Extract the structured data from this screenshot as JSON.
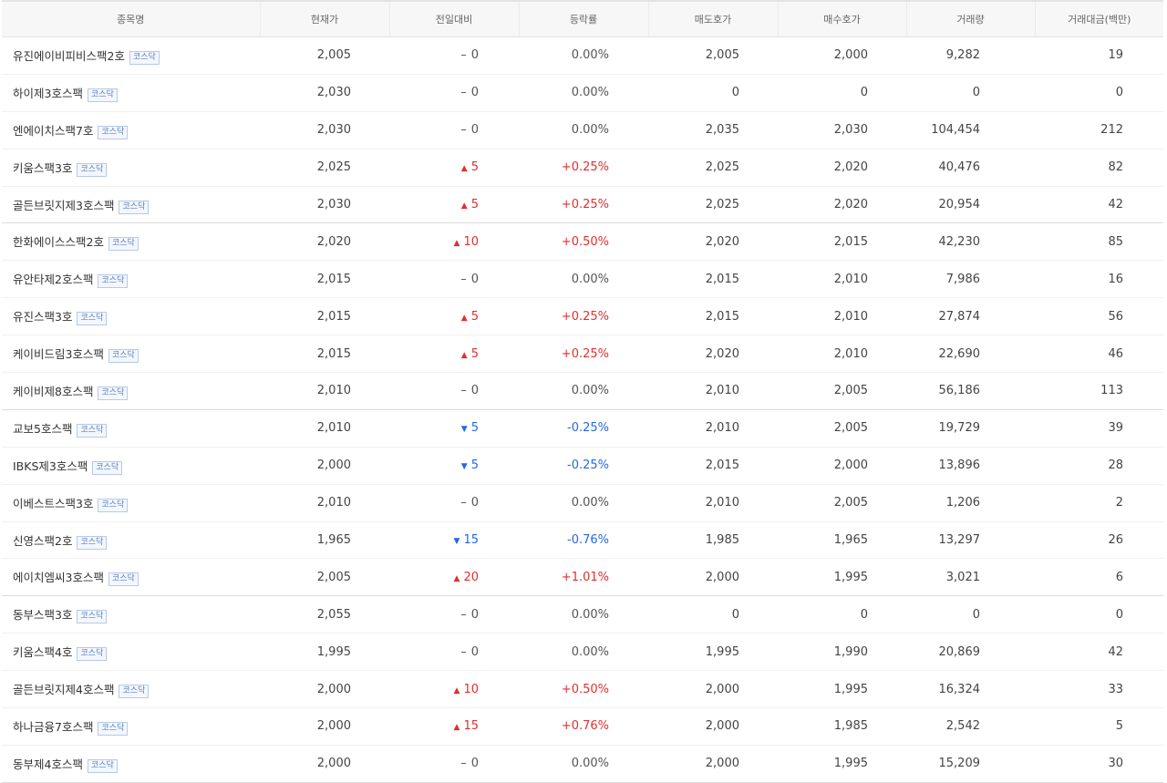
{
  "headers": [
    "종목명",
    "현재가",
    "전일대비",
    "등락률",
    "매도호가",
    "매수호가",
    "거래량",
    "거래대금(백만)"
  ],
  "badge_label": "코스닥",
  "colors": {
    "up": "#e0302e",
    "down": "#2468e8",
    "flat": "#555555",
    "badge_border": "#b7c9e6"
  },
  "rows": [
    {
      "name": "유진에이비피비스팩2호",
      "price": "2,005",
      "dir": "flat",
      "change": "0",
      "rate": "0.00%",
      "ask": "2,005",
      "bid": "2,000",
      "volume": "9,282",
      "amount": "19"
    },
    {
      "name": "하이제3호스팩",
      "price": "2,030",
      "dir": "flat",
      "change": "0",
      "rate": "0.00%",
      "ask": "0",
      "bid": "0",
      "volume": "0",
      "amount": "0"
    },
    {
      "name": "엔에이치스팩7호",
      "price": "2,030",
      "dir": "flat",
      "change": "0",
      "rate": "0.00%",
      "ask": "2,035",
      "bid": "2,030",
      "volume": "104,454",
      "amount": "212"
    },
    {
      "name": "키움스팩3호",
      "price": "2,025",
      "dir": "up",
      "change": "5",
      "rate": "+0.25%",
      "ask": "2,025",
      "bid": "2,020",
      "volume": "40,476",
      "amount": "82"
    },
    {
      "name": "골든브릿지제3호스팩",
      "price": "2,030",
      "dir": "up",
      "change": "5",
      "rate": "+0.25%",
      "ask": "2,025",
      "bid": "2,020",
      "volume": "20,954",
      "amount": "42"
    },
    {
      "name": "한화에이스스팩2호",
      "price": "2,020",
      "dir": "up",
      "change": "10",
      "rate": "+0.50%",
      "ask": "2,020",
      "bid": "2,015",
      "volume": "42,230",
      "amount": "85"
    },
    {
      "name": "유안타제2호스팩",
      "price": "2,015",
      "dir": "flat",
      "change": "0",
      "rate": "0.00%",
      "ask": "2,015",
      "bid": "2,010",
      "volume": "7,986",
      "amount": "16"
    },
    {
      "name": "유진스팩3호",
      "price": "2,015",
      "dir": "up",
      "change": "5",
      "rate": "+0.25%",
      "ask": "2,015",
      "bid": "2,010",
      "volume": "27,874",
      "amount": "56"
    },
    {
      "name": "케이비드림3호스팩",
      "price": "2,015",
      "dir": "up",
      "change": "5",
      "rate": "+0.25%",
      "ask": "2,020",
      "bid": "2,010",
      "volume": "22,690",
      "amount": "46"
    },
    {
      "name": "케이비제8호스팩",
      "price": "2,010",
      "dir": "flat",
      "change": "0",
      "rate": "0.00%",
      "ask": "2,010",
      "bid": "2,005",
      "volume": "56,186",
      "amount": "113"
    },
    {
      "name": "교보5호스팩",
      "price": "2,010",
      "dir": "down",
      "change": "5",
      "rate": "-0.25%",
      "ask": "2,010",
      "bid": "2,005",
      "volume": "19,729",
      "amount": "39"
    },
    {
      "name": "IBKS제3호스팩",
      "price": "2,000",
      "dir": "down",
      "change": "5",
      "rate": "-0.25%",
      "ask": "2,015",
      "bid": "2,000",
      "volume": "13,896",
      "amount": "28"
    },
    {
      "name": "이베스트스팩3호",
      "price": "2,010",
      "dir": "flat",
      "change": "0",
      "rate": "0.00%",
      "ask": "2,010",
      "bid": "2,005",
      "volume": "1,206",
      "amount": "2"
    },
    {
      "name": "신영스팩2호",
      "price": "1,965",
      "dir": "down",
      "change": "15",
      "rate": "-0.76%",
      "ask": "1,985",
      "bid": "1,965",
      "volume": "13,297",
      "amount": "26"
    },
    {
      "name": "에이치엠씨3호스팩",
      "price": "2,005",
      "dir": "up",
      "change": "20",
      "rate": "+1.01%",
      "ask": "2,000",
      "bid": "1,995",
      "volume": "3,021",
      "amount": "6"
    },
    {
      "name": "동부스팩3호",
      "price": "2,055",
      "dir": "flat",
      "change": "0",
      "rate": "0.00%",
      "ask": "0",
      "bid": "0",
      "volume": "0",
      "amount": "0"
    },
    {
      "name": "키움스팩4호",
      "price": "1,995",
      "dir": "flat",
      "change": "0",
      "rate": "0.00%",
      "ask": "1,995",
      "bid": "1,990",
      "volume": "20,869",
      "amount": "42"
    },
    {
      "name": "골든브릿지제4호스팩",
      "price": "2,000",
      "dir": "up",
      "change": "10",
      "rate": "+0.50%",
      "ask": "2,000",
      "bid": "1,995",
      "volume": "16,324",
      "amount": "33"
    },
    {
      "name": "하나금융7호스팩",
      "price": "2,000",
      "dir": "up",
      "change": "15",
      "rate": "+0.76%",
      "ask": "2,000",
      "bid": "1,985",
      "volume": "2,542",
      "amount": "5"
    },
    {
      "name": "동부제4호스팩",
      "price": "2,000",
      "dir": "flat",
      "change": "0",
      "rate": "0.00%",
      "ask": "2,000",
      "bid": "1,995",
      "volume": "15,209",
      "amount": "30"
    }
  ]
}
